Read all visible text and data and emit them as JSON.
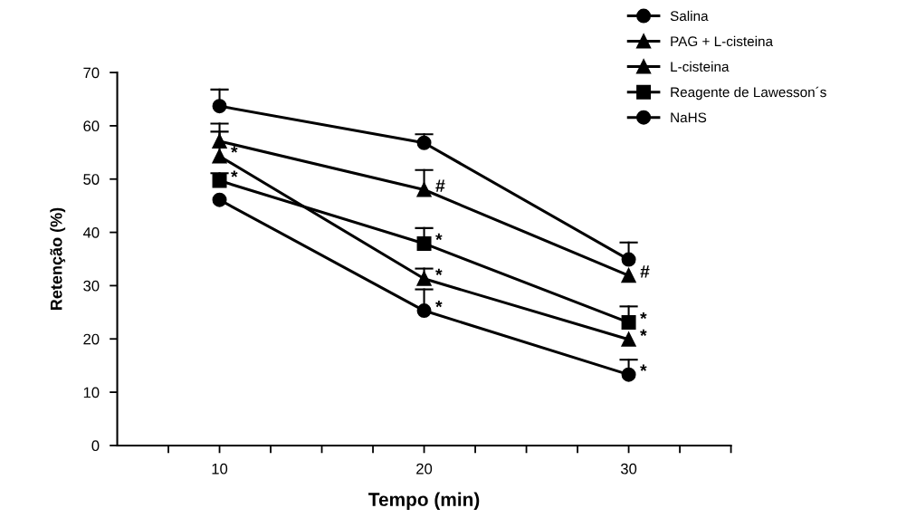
{
  "chart_data": {
    "type": "line",
    "xlabel": "Tempo (min)",
    "ylabel": "Retenção (%)",
    "x": [
      10,
      20,
      30
    ],
    "xlim": [
      5,
      35
    ],
    "xticks": [
      {
        "value": 7.5,
        "label": null
      },
      10,
      {
        "value": 12.5,
        "label": null
      },
      {
        "value": 15,
        "label": null
      },
      {
        "value": 17.5,
        "label": null
      },
      20,
      {
        "value": 22.5,
        "label": null
      },
      {
        "value": 25,
        "label": null
      },
      {
        "value": 27.5,
        "label": null
      },
      30,
      {
        "value": 32.5,
        "label": null
      },
      {
        "value": 35,
        "label": null
      }
    ],
    "ylim": [
      0,
      70
    ],
    "yticks": [
      0,
      10,
      20,
      30,
      40,
      50,
      60,
      70
    ],
    "grid": false,
    "legend": "top right",
    "line_style": "solid",
    "series": [
      {
        "name": "Salina",
        "color": "#000000",
        "marker": "circle",
        "values": [
          63.7,
          56.8,
          34.9
        ],
        "errors": [
          [
            63.7,
            66.8
          ],
          [
            56.8,
            58.4
          ],
          [
            34.9,
            38.1
          ]
        ]
      },
      {
        "name": "PAG + L-cisteina",
        "color": "#000000",
        "marker": "triangle",
        "values": [
          57.1,
          48.0,
          31.9
        ],
        "errors": [
          [
            57.1,
            60.4
          ],
          [
            48.0,
            51.7
          ],
          null
        ]
      },
      {
        "name": "L-cisteina",
        "color": "#000000",
        "marker": "triangle",
        "values": [
          54.3,
          31.3,
          19.9
        ],
        "errors": [
          [
            54.3,
            58.9
          ],
          [
            31.3,
            33.2
          ],
          null
        ]
      },
      {
        "name": "Reagente de Lawesson´s",
        "color": "#000000",
        "marker": "square",
        "values": [
          49.7,
          37.9,
          23.1
        ],
        "errors": [
          [
            49.7,
            51.1
          ],
          [
            37.9,
            40.8
          ],
          [
            23.1,
            26.1
          ]
        ]
      },
      {
        "name": "NaHS",
        "color": "#000000",
        "marker": "circle",
        "values": [
          46.1,
          25.3,
          13.3
        ],
        "errors": [
          null,
          [
            25.3,
            29.3
          ],
          [
            13.3,
            16.1
          ]
        ]
      }
    ],
    "annotations": [
      {
        "text": "*",
        "x": 10,
        "y": 54.3
      },
      {
        "text": "*",
        "x": 10,
        "y": 49.7
      },
      {
        "text": "#",
        "x": 20,
        "y": 48.0
      },
      {
        "text": "*",
        "x": 20,
        "y": 37.9
      },
      {
        "text": "*",
        "x": 20,
        "y": 31.3
      },
      {
        "text": "*",
        "x": 20,
        "y": 25.3
      },
      {
        "text": "#",
        "x": 30,
        "y": 31.9
      },
      {
        "text": "*",
        "x": 30,
        "y": 23.1
      },
      {
        "text": "*",
        "x": 30,
        "y": 19.9
      },
      {
        "text": "*",
        "x": 30,
        "y": 13.3
      }
    ]
  }
}
